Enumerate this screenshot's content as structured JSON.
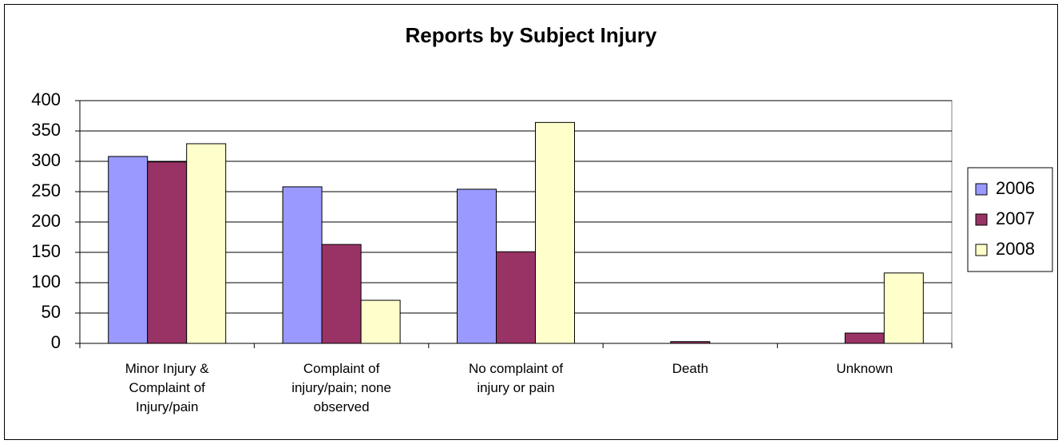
{
  "chart_data": {
    "type": "bar",
    "title": "Reports by Subject Injury",
    "categories": [
      "Minor Injury &\nComplaint of\nInjury/pain",
      "Complaint of\ninjury/pain; none\nobserved",
      "No complaint of\ninjury or pain",
      "Death",
      "Unknown"
    ],
    "series": [
      {
        "name": "2006",
        "color": "#9999ff",
        "values": [
          308,
          258,
          254,
          0,
          0
        ]
      },
      {
        "name": "2007",
        "color": "#993366",
        "values": [
          299,
          163,
          151,
          3,
          17
        ]
      },
      {
        "name": "2008",
        "color": "#ffffcc",
        "values": [
          329,
          71,
          364,
          0,
          116
        ]
      }
    ],
    "ylim": [
      0,
      400
    ],
    "yticks": [
      0,
      50,
      100,
      150,
      200,
      250,
      300,
      350,
      400
    ],
    "grid": true,
    "legend": "right"
  }
}
